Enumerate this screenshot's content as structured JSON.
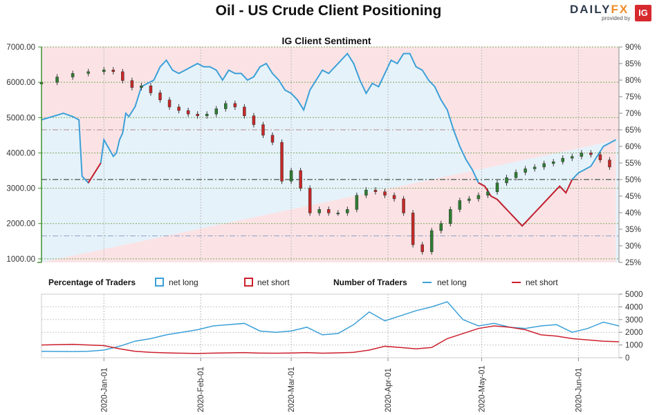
{
  "header": {
    "title": "Oil - US Crude Client Positioning",
    "logo_text_main": "DAILY",
    "logo_text_fx": "FX",
    "logo_sub": "provided by",
    "logo_badge": "IG"
  },
  "chart_data": {
    "type": "candlestick+line",
    "title": "IG Client Sentiment",
    "colors": {
      "net_long": "#3aa0d8",
      "net_short": "#cc1f2c",
      "candle_up": "#2e7d32",
      "candle_down": "#c62828",
      "bg_long": "#e6f2fa",
      "bg_short": "#fbe3e5",
      "left_axis": "#3f8f2f"
    },
    "price_axis": {
      "ticks": [
        "7000.00",
        "6000.00",
        "5000.00",
        "4000.00",
        "3000.00",
        "2000.00",
        "1000.00"
      ],
      "ylim": [
        900,
        7000
      ]
    },
    "sentiment_axis": {
      "ticks": [
        "90%",
        "85%",
        "80%",
        "75%",
        "70%",
        "65%",
        "60%",
        "55%",
        "50%",
        "45%",
        "40%",
        "35%",
        "30%",
        "25%"
      ],
      "ylim": [
        25,
        90
      ],
      "reference_lines": [
        50,
        33,
        65
      ]
    },
    "date_labels": [
      "2020-Jan-01",
      "2020-Feb-01",
      "2020-Mar-01",
      "2020-Apr-01",
      "2020-May-01",
      "2020-Jun-01"
    ],
    "x_range": {
      "start_day": -20,
      "end_day": 165,
      "label_days": [
        0,
        31,
        60,
        91,
        121,
        152
      ]
    },
    "price_candles": {
      "day": [
        -20,
        -15,
        -10,
        -5,
        0,
        3,
        6,
        9,
        12,
        15,
        18,
        21,
        24,
        27,
        30,
        33,
        36,
        39,
        42,
        45,
        48,
        51,
        54,
        57,
        60,
        63,
        66,
        69,
        72,
        75,
        78,
        81,
        84,
        87,
        90,
        93,
        96,
        99,
        102,
        105,
        108,
        111,
        114,
        117,
        120,
        123,
        126,
        129,
        132,
        135,
        138,
        141,
        144,
        147,
        150,
        153,
        156,
        159,
        162
      ],
      "close": [
        6000,
        6150,
        6250,
        6300,
        6350,
        6300,
        6050,
        5850,
        5900,
        5700,
        5500,
        5300,
        5200,
        5100,
        5050,
        5100,
        5250,
        5400,
        5300,
        5050,
        4800,
        4500,
        4300,
        3200,
        3500,
        3000,
        2300,
        2400,
        2300,
        2300,
        2400,
        2800,
        2950,
        2900,
        2800,
        2700,
        2300,
        1400,
        1200,
        1800,
        2000,
        2400,
        2650,
        2700,
        2800,
        2900,
        3150,
        3300,
        3450,
        3550,
        3600,
        3700,
        3750,
        3850,
        3900,
        4000,
        3950,
        3800,
        3600
      ],
      "spread": 80
    },
    "sentiment_long_pct": {
      "day": [
        -20,
        -13,
        -10,
        -8,
        -7,
        -5,
        -1,
        0,
        3,
        4,
        5,
        6,
        7,
        8,
        10,
        12,
        14,
        16,
        18,
        20,
        22,
        24,
        26,
        28,
        30,
        32,
        34,
        36,
        38,
        40,
        42,
        44,
        46,
        48,
        50,
        52,
        54,
        56,
        58,
        60,
        62,
        64,
        66,
        68,
        70,
        72,
        74,
        76,
        78,
        80,
        82,
        84,
        86,
        88,
        90,
        92,
        94,
        96,
        98,
        100,
        102,
        104,
        106,
        108,
        110,
        112,
        114,
        116,
        118,
        120,
        122,
        124,
        126,
        128,
        130,
        132,
        134,
        136,
        138,
        140,
        142,
        144,
        146,
        148,
        150,
        152,
        154,
        156,
        158,
        160,
        162,
        164
      ],
      "values": [
        68,
        70,
        69,
        68,
        51,
        49,
        55,
        62,
        57,
        58,
        62,
        64,
        70,
        69,
        72,
        78,
        79,
        80,
        84,
        86,
        83,
        82,
        83,
        84,
        85,
        84,
        84,
        83,
        80,
        83,
        82,
        82,
        80,
        81,
        84,
        85,
        82,
        80,
        77,
        76,
        74,
        71,
        77,
        80,
        83,
        82,
        84,
        86,
        88,
        85,
        80,
        76,
        79,
        78,
        82,
        86,
        85,
        88,
        88,
        84,
        83,
        80,
        78,
        74,
        71,
        65,
        60,
        56,
        53,
        49,
        48,
        45,
        44,
        42,
        40,
        38,
        36,
        38,
        40,
        42,
        44,
        46,
        48,
        46,
        50,
        52,
        53,
        54,
        57,
        60,
        61,
        62
      ]
    },
    "sentiment_short_pct": {
      "day": [
        -20,
        -13,
        -10,
        -8,
        -7,
        -5,
        -1,
        0,
        3,
        4,
        5,
        6,
        7,
        8,
        10,
        12,
        14,
        16,
        18,
        20,
        22,
        24,
        26,
        28,
        30,
        32,
        34,
        36,
        38,
        40,
        42,
        44,
        46,
        48,
        50,
        52,
        54,
        56,
        58,
        60,
        62,
        64,
        66,
        68,
        70,
        72,
        74,
        76,
        78,
        80,
        82,
        84,
        86,
        88,
        90,
        92,
        94,
        96,
        98,
        100,
        102,
        104,
        106,
        108,
        110,
        112,
        114,
        116,
        118,
        120,
        122,
        124,
        126,
        128,
        130,
        132,
        134,
        136,
        138,
        140,
        142,
        144,
        146,
        148,
        150,
        152,
        154,
        156,
        158,
        160,
        162,
        164
      ],
      "values": [
        32,
        30,
        31,
        32,
        49,
        51,
        45,
        38,
        43,
        42,
        38,
        36,
        30,
        31,
        28,
        22,
        21,
        20,
        16,
        14,
        17,
        18,
        17,
        16,
        15,
        16,
        16,
        17,
        20,
        17,
        18,
        18,
        20,
        19,
        16,
        15,
        18,
        20,
        23,
        24,
        26,
        29,
        23,
        20,
        17,
        18,
        16,
        14,
        12,
        15,
        20,
        24,
        21,
        22,
        18,
        14,
        15,
        12,
        12,
        16,
        17,
        20,
        22,
        26,
        29,
        35,
        40,
        44,
        47,
        51,
        52,
        55,
        56,
        58,
        60,
        62,
        64,
        62,
        60,
        58,
        56,
        54,
        52,
        54,
        50,
        48,
        47,
        46,
        43,
        40,
        39,
        38
      ]
    },
    "legend": {
      "pct_title": "Percentage of Traders",
      "count_title": "Number of Traders",
      "net_long": "net long",
      "net_short": "net short"
    },
    "traders_axis": {
      "ticks": [
        "5000",
        "4000",
        "3000",
        "2000",
        "1000",
        "0"
      ],
      "ylim": [
        0,
        5000
      ]
    },
    "traders_long": {
      "day": [
        -20,
        -10,
        -5,
        0,
        5,
        10,
        15,
        20,
        25,
        30,
        35,
        40,
        45,
        50,
        55,
        60,
        65,
        70,
        75,
        80,
        85,
        90,
        95,
        100,
        105,
        110,
        115,
        120,
        125,
        130,
        135,
        140,
        145,
        150,
        155,
        160,
        165
      ],
      "values": [
        500,
        480,
        500,
        600,
        900,
        1300,
        1500,
        1800,
        2000,
        2200,
        2500,
        2600,
        2700,
        2100,
        2000,
        2100,
        2400,
        1800,
        1900,
        2600,
        3600,
        2900,
        3300,
        3700,
        4000,
        4400,
        3000,
        2500,
        2700,
        2400,
        2300,
        2500,
        2600,
        2000,
        2300,
        2800,
        2500
      ]
    },
    "traders_short": {
      "day": [
        -20,
        -10,
        -5,
        0,
        5,
        10,
        15,
        20,
        25,
        30,
        35,
        40,
        45,
        50,
        55,
        60,
        65,
        70,
        75,
        80,
        85,
        90,
        95,
        100,
        105,
        110,
        115,
        120,
        125,
        130,
        135,
        140,
        145,
        150,
        155,
        160,
        165
      ],
      "values": [
        1000,
        1050,
        1000,
        950,
        700,
        500,
        420,
        380,
        350,
        330,
        360,
        380,
        400,
        360,
        350,
        370,
        400,
        350,
        380,
        420,
        600,
        900,
        800,
        700,
        800,
        1500,
        1900,
        2300,
        2500,
        2400,
        2200,
        1800,
        1700,
        1500,
        1400,
        1300,
        1250
      ]
    }
  }
}
